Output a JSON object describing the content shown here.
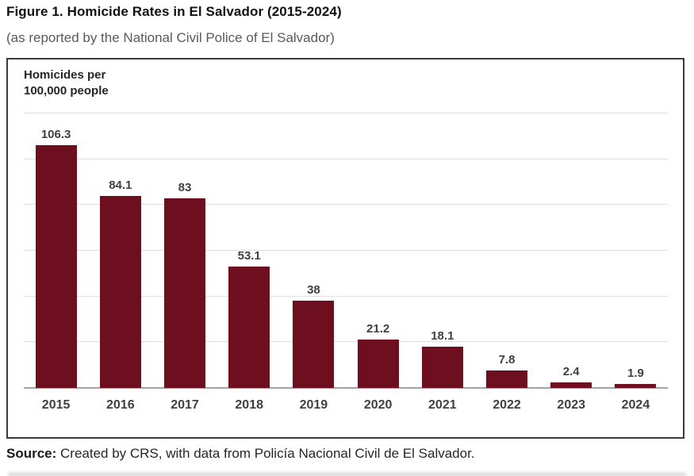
{
  "page": {
    "title": "Figure 1. Homicide Rates in El Salvador (2015-2024)",
    "subtitle": "(as reported by the National Civil Police of El Salvador)",
    "source_label": "Source:",
    "source_text": " Created by CRS, with data from Policía Nacional Civil de El Salvador."
  },
  "chart_data": {
    "type": "bar",
    "title": "Figure 1. Homicide Rates in El Salvador (2015-2024)",
    "subtitle": "(as reported by the National Civil Police of El Salvador)",
    "ylabel_line1": "Homicides per",
    "ylabel_line2": "100,000 people",
    "xlabel": "",
    "categories": [
      "2015",
      "2016",
      "2017",
      "2018",
      "2019",
      "2020",
      "2021",
      "2022",
      "2023",
      "2024"
    ],
    "values": [
      106.3,
      84.1,
      83,
      53.1,
      38,
      21.2,
      18.1,
      7.8,
      2.4,
      1.9
    ],
    "value_labels": [
      "106.3",
      "84.1",
      "83",
      "53.1",
      "38",
      "21.2",
      "18.1",
      "7.8",
      "2.4",
      "1.9"
    ],
    "ylim": [
      0,
      120
    ],
    "gridline_step": 20,
    "grid": "horizontal-only",
    "legend": "none",
    "bar_color": "#6d0f1f",
    "gridline_color": "#dedede",
    "axis_line_color": "#a3a3a3",
    "source": "Source: Created by CRS, with data from Policía Nacional Civil de El Salvador."
  }
}
